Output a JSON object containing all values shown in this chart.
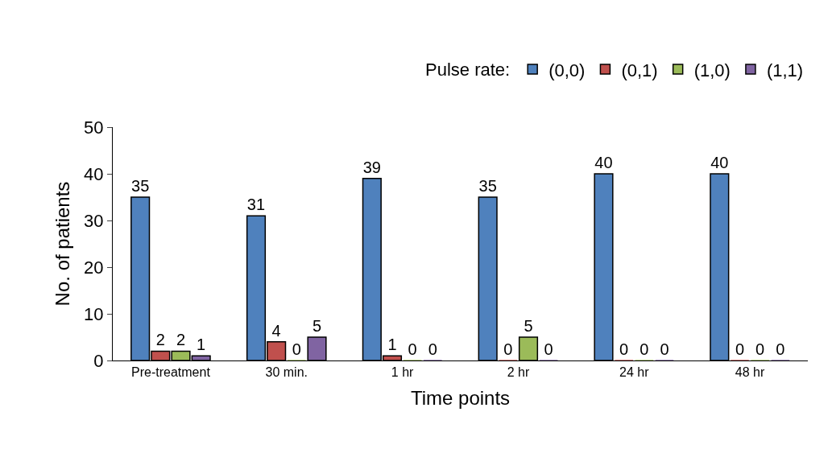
{
  "chart_data": {
    "type": "bar",
    "xlabel": "Time points",
    "ylabel": "No. of patients",
    "legend_title": "Pulse rate:",
    "categories": [
      "Pre-treatment",
      "30 min.",
      "1 hr",
      "2 hr",
      "24 hr",
      "48 hr"
    ],
    "series": [
      {
        "name": "(0,0)",
        "color": "#4f81bd",
        "values": [
          35,
          31,
          39,
          35,
          40,
          40
        ]
      },
      {
        "name": "(0,1)",
        "color": "#c0504d",
        "values": [
          2,
          4,
          1,
          0,
          0,
          0
        ]
      },
      {
        "name": "(1,0)",
        "color": "#9bbb59",
        "values": [
          2,
          0,
          0,
          5,
          0,
          0
        ]
      },
      {
        "name": "(1,1)",
        "color": "#8064a2",
        "values": [
          1,
          5,
          0,
          0,
          0,
          0
        ]
      }
    ],
    "ylim": [
      0,
      50
    ],
    "yticks": [
      0,
      10,
      20,
      30,
      40,
      50
    ],
    "grid": false,
    "legend": "top right",
    "data_labels": true
  }
}
